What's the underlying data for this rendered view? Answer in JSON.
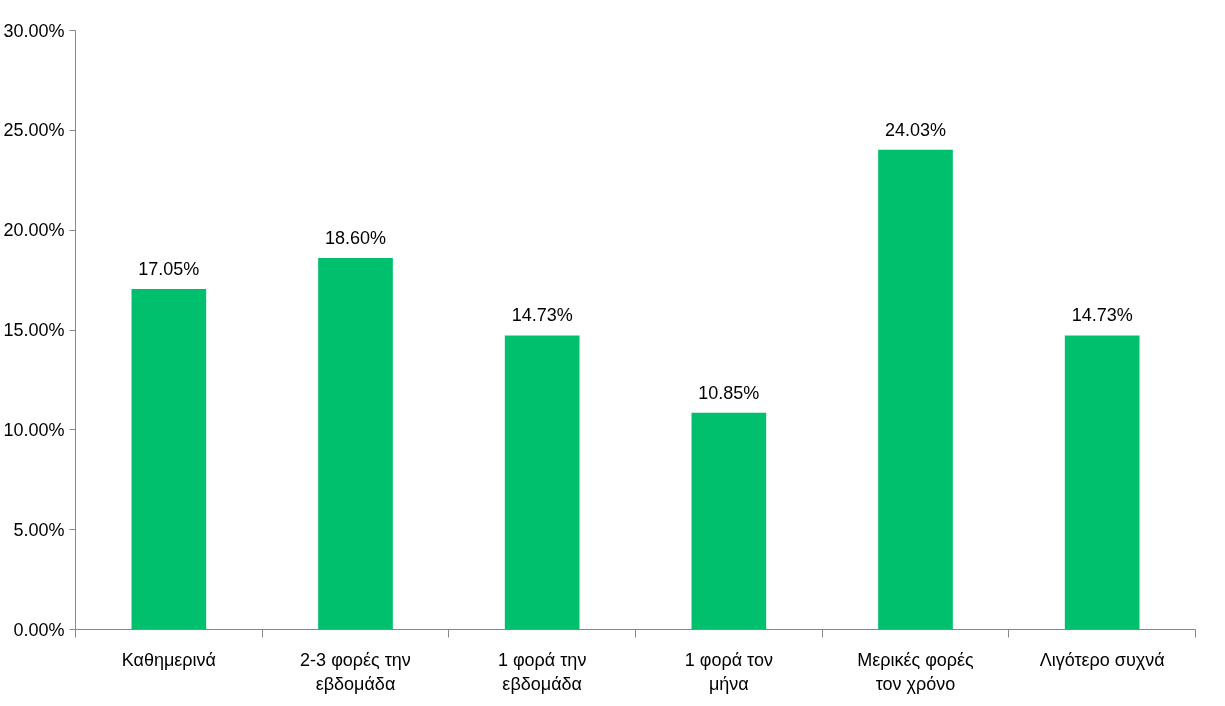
{
  "chart_data": {
    "type": "bar",
    "categories": [
      "Καθημερινά",
      "2-3 φορές την εβδομάδα",
      "1 φορά την εβδομάδα",
      "1 φορά τον μήνα",
      "Μερικές φορές τον χρόνο",
      "Λιγότερο συχνά"
    ],
    "values": [
      17.05,
      18.6,
      14.73,
      10.85,
      24.03,
      14.73
    ],
    "value_labels": [
      "17.05%",
      "18.60%",
      "14.73%",
      "10.85%",
      "24.03%",
      "14.73%"
    ],
    "color": "#00c06e",
    "ylim": [
      0,
      30
    ],
    "yticks": [
      {
        "value": 0,
        "label": "0.00%"
      },
      {
        "value": 5,
        "label": "5.00%"
      },
      {
        "value": 10,
        "label": "10.00%"
      },
      {
        "value": 15,
        "label": "15.00%"
      },
      {
        "value": 20,
        "label": "20.00%"
      },
      {
        "value": 25,
        "label": "25.00%"
      },
      {
        "value": 30,
        "label": "30.00%"
      }
    ],
    "grid": false
  }
}
